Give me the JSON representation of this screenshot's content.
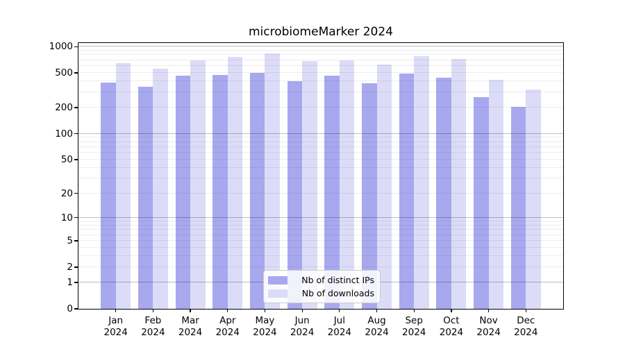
{
  "chart_data": {
    "type": "bar",
    "title": "microbiomeMarker 2024",
    "categories": [
      "Jan 2024",
      "Feb 2024",
      "Mar 2024",
      "Apr 2024",
      "May 2024",
      "Jun 2024",
      "Jul 2024",
      "Aug 2024",
      "Sep 2024",
      "Oct 2024",
      "Nov 2024",
      "Dec 2024"
    ],
    "series": [
      {
        "name": "Nb of distinct IPs",
        "color": "#a8a8ef",
        "values": [
          385,
          345,
          464,
          472,
          505,
          402,
          464,
          381,
          495,
          441,
          266,
          205
        ]
      },
      {
        "name": "Nb of downloads",
        "color": "#dcdcf8",
        "values": [
          645,
          557,
          691,
          757,
          840,
          678,
          703,
          619,
          780,
          720,
          415,
          321
        ]
      }
    ],
    "yscale": "log10(1+v)",
    "yticks": [
      0,
      1,
      2,
      5,
      10,
      20,
      50,
      100,
      200,
      500,
      1000
    ],
    "ylim": [
      0,
      1100
    ],
    "xlabel": "",
    "ylabel": "",
    "grid": "horizontal, log minor lines 2-9 per decade, major at powers of 10",
    "legend_position": "lower center inside plot"
  },
  "colors": {
    "distinct_ips_bar": "#a8a8ef",
    "downloads_bar": "#dcdcf8",
    "frame": "#000000",
    "grid_major": "#bdbdbd",
    "grid_minor": "#e9e9e9",
    "legend_border": "#cccccc",
    "background": "#ffffff",
    "text": "#000000"
  }
}
